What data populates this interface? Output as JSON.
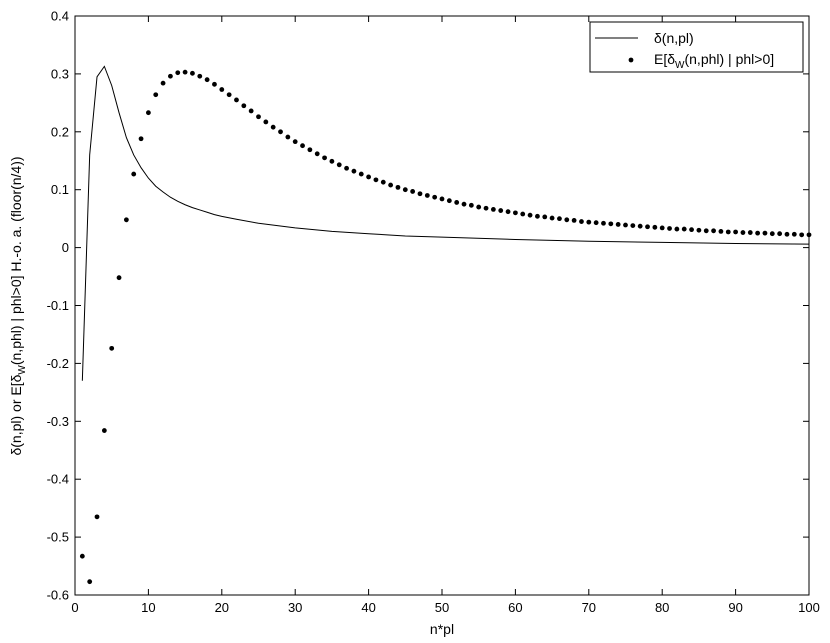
{
  "chart_data": {
    "type": "line",
    "title": "",
    "xlabel": "n*pl",
    "ylabel_parts": {
      "pre": "δ(n,pl) or E[δ",
      "sub": "W",
      "post": "(n,phl) | phl>0]    H.-o. a. (floor(n/4))"
    },
    "xlim": [
      0,
      100
    ],
    "ylim": [
      -0.6,
      0.4
    ],
    "xticks": [
      0,
      10,
      20,
      30,
      40,
      50,
      60,
      70,
      80,
      90,
      100
    ],
    "yticks": [
      -0.6,
      -0.5,
      -0.4,
      -0.3,
      -0.2,
      -0.1,
      0,
      0.1,
      0.2,
      0.3,
      0.4
    ],
    "ytick_labels": [
      "-0.6",
      "-0.5",
      "-0.4",
      "-0.3",
      "-0.2",
      "-0.1",
      "0",
      "0.1",
      "0.2",
      "0.3",
      "0.4"
    ],
    "grid": false,
    "legend_position": "top-right",
    "series": [
      {
        "name": "δ(n,pl)",
        "style": "line",
        "color": "#000000",
        "x": [
          1,
          2,
          3,
          4,
          5,
          6,
          7,
          8,
          9,
          10,
          11,
          12,
          13,
          14,
          15,
          16,
          17,
          18,
          19,
          20,
          22,
          25,
          30,
          35,
          40,
          45,
          50,
          60,
          70,
          80,
          90,
          100
        ],
        "y": [
          -0.23,
          0.16,
          0.295,
          0.313,
          0.28,
          0.233,
          0.19,
          0.16,
          0.138,
          0.12,
          0.106,
          0.096,
          0.087,
          0.08,
          0.074,
          0.069,
          0.065,
          0.061,
          0.057,
          0.054,
          0.049,
          0.042,
          0.034,
          0.028,
          0.024,
          0.02,
          0.018,
          0.014,
          0.011,
          0.009,
          0.007,
          0.006
        ]
      },
      {
        "name_parts": {
          "pre": "E[δ",
          "sub": "W",
          "post": "(n,phl) | phl>0]"
        },
        "style": "markers",
        "color": "#000000",
        "x": [
          1,
          2,
          3,
          4,
          5,
          6,
          7,
          8,
          9,
          10,
          11,
          12,
          13,
          14,
          15,
          16,
          17,
          18,
          19,
          20,
          21,
          22,
          23,
          24,
          25,
          26,
          27,
          28,
          29,
          30,
          31,
          32,
          33,
          34,
          35,
          36,
          37,
          38,
          39,
          40,
          41,
          42,
          43,
          44,
          45,
          46,
          47,
          48,
          49,
          50,
          51,
          52,
          53,
          54,
          55,
          56,
          57,
          58,
          59,
          60,
          61,
          62,
          63,
          64,
          65,
          66,
          67,
          68,
          69,
          70,
          71,
          72,
          73,
          74,
          75,
          76,
          77,
          78,
          79,
          80,
          81,
          82,
          83,
          84,
          85,
          86,
          87,
          88,
          89,
          90,
          91,
          92,
          93,
          94,
          95,
          96,
          97,
          98,
          99,
          100
        ],
        "y": [
          -0.533,
          -0.577,
          -0.465,
          -0.316,
          -0.174,
          -0.052,
          0.048,
          0.127,
          0.188,
          0.233,
          0.264,
          0.284,
          0.296,
          0.302,
          0.303,
          0.301,
          0.296,
          0.29,
          0.282,
          0.273,
          0.264,
          0.255,
          0.245,
          0.236,
          0.226,
          0.217,
          0.208,
          0.2,
          0.191,
          0.183,
          0.176,
          0.169,
          0.162,
          0.155,
          0.149,
          0.143,
          0.137,
          0.132,
          0.127,
          0.122,
          0.117,
          0.113,
          0.108,
          0.104,
          0.1,
          0.097,
          0.093,
          0.09,
          0.087,
          0.084,
          0.081,
          0.078,
          0.075,
          0.073,
          0.07,
          0.068,
          0.066,
          0.064,
          0.062,
          0.06,
          0.058,
          0.056,
          0.054,
          0.053,
          0.051,
          0.05,
          0.048,
          0.047,
          0.045,
          0.044,
          0.043,
          0.042,
          0.041,
          0.04,
          0.039,
          0.038,
          0.037,
          0.036,
          0.035,
          0.034,
          0.033,
          0.032,
          0.032,
          0.031,
          0.03,
          0.029,
          0.029,
          0.028,
          0.027,
          0.027,
          0.026,
          0.026,
          0.025,
          0.025,
          0.024,
          0.024,
          0.023,
          0.023,
          0.022,
          0.022
        ]
      }
    ]
  }
}
